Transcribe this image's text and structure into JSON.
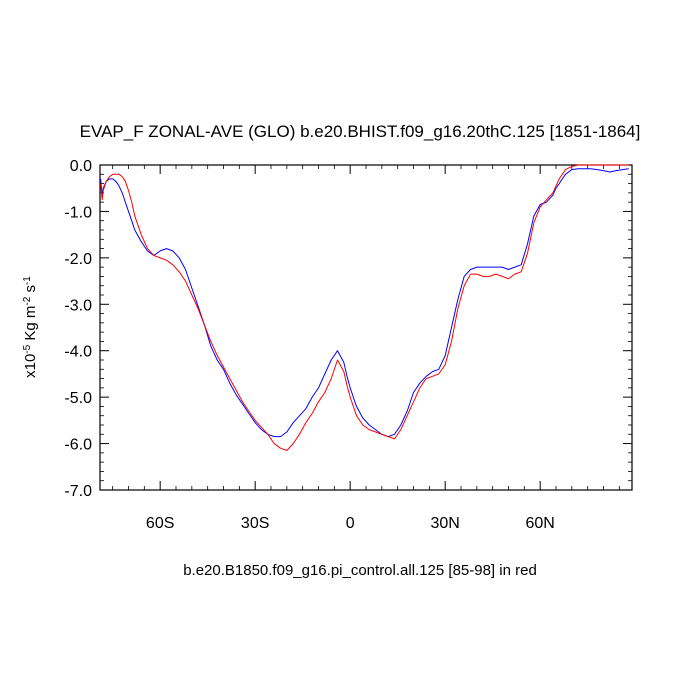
{
  "chart_data": {
    "type": "line",
    "title": "EVAP_F ZONAL-AVE (GLO) b.e20.BHIST.f09_g16.20thC.125 [1851-1864]",
    "ylabel": {
      "prefix": "x10",
      "exp1": "-5",
      "mid": " Kg m",
      "exp2": "-2",
      "mid2": " s",
      "exp3": "-1"
    },
    "caption": "b.e20.B1850.f09_g16.pi_control.all.125 [85-98] in red",
    "xlim": [
      -79,
      89
    ],
    "ylim": [
      -7.0,
      0.0
    ],
    "x_ticks": [
      {
        "value": -60,
        "label": "60S"
      },
      {
        "value": -30,
        "label": "30S"
      },
      {
        "value": 0,
        "label": "0"
      },
      {
        "value": 30,
        "label": "30N"
      },
      {
        "value": 60,
        "label": "60N"
      }
    ],
    "y_ticks": [
      {
        "value": 0,
        "label": "0.0"
      },
      {
        "value": -1,
        "label": "-1.0"
      },
      {
        "value": -2,
        "label": "-2.0"
      },
      {
        "value": -3,
        "label": "-3.0"
      },
      {
        "value": -4,
        "label": "-4.0"
      },
      {
        "value": -5,
        "label": "-5.0"
      },
      {
        "value": -6,
        "label": "-6.0"
      },
      {
        "value": -7,
        "label": "-7.0"
      }
    ],
    "grid": false,
    "legend": "none",
    "series": [
      {
        "color": "#0000ff",
        "x": [
          -78.8,
          -78.3,
          -78,
          -77,
          -76,
          -75,
          -74,
          -73,
          -72,
          -71,
          -70,
          -69,
          -68,
          -66,
          -64,
          -62,
          -60,
          -58,
          -56,
          -54,
          -52,
          -50,
          -48,
          -46,
          -44,
          -42,
          -40,
          -38,
          -36,
          -34,
          -32,
          -30,
          -28,
          -26,
          -24,
          -22,
          -20,
          -18,
          -16,
          -14,
          -12,
          -10,
          -8,
          -6,
          -4,
          -2,
          -1,
          0,
          1,
          2,
          4,
          6,
          8,
          10,
          12,
          14,
          16,
          18,
          20,
          22,
          24,
          26,
          28,
          30,
          32,
          34,
          36,
          38,
          40,
          42,
          44,
          46,
          48,
          50,
          52,
          54,
          56,
          58,
          60,
          62,
          64,
          65,
          66,
          67,
          68,
          70,
          72,
          74,
          76,
          78,
          80,
          82,
          84,
          86,
          88
        ],
        "y": [
          -0.3,
          -0.65,
          -0.5,
          -0.35,
          -0.3,
          -0.3,
          -0.35,
          -0.45,
          -0.6,
          -0.8,
          -1.0,
          -1.2,
          -1.4,
          -1.65,
          -1.85,
          -1.95,
          -1.85,
          -1.8,
          -1.85,
          -2.0,
          -2.25,
          -2.65,
          -3.05,
          -3.45,
          -3.9,
          -4.2,
          -4.4,
          -4.7,
          -4.95,
          -5.15,
          -5.35,
          -5.55,
          -5.7,
          -5.8,
          -5.85,
          -5.85,
          -5.75,
          -5.55,
          -5.4,
          -5.25,
          -5.0,
          -4.8,
          -4.5,
          -4.2,
          -4.0,
          -4.25,
          -4.55,
          -4.8,
          -5.0,
          -5.2,
          -5.45,
          -5.6,
          -5.7,
          -5.8,
          -5.85,
          -5.8,
          -5.6,
          -5.3,
          -4.9,
          -4.7,
          -4.55,
          -4.45,
          -4.4,
          -4.1,
          -3.5,
          -2.9,
          -2.4,
          -2.25,
          -2.2,
          -2.2,
          -2.2,
          -2.2,
          -2.2,
          -2.25,
          -2.2,
          -2.15,
          -1.7,
          -1.1,
          -0.85,
          -0.8,
          -0.65,
          -0.5,
          -0.4,
          -0.3,
          -0.2,
          -0.1,
          -0.08,
          -0.08,
          -0.08,
          -0.1,
          -0.12,
          -0.15,
          -0.12,
          -0.1,
          -0.08
        ]
      },
      {
        "color": "#ff0000",
        "x": [
          -78.8,
          -78.3,
          -78,
          -77,
          -76,
          -75,
          -74,
          -73,
          -72,
          -71,
          -70,
          -69,
          -68,
          -66,
          -64,
          -62,
          -60,
          -58,
          -56,
          -54,
          -52,
          -50,
          -48,
          -46,
          -44,
          -42,
          -40,
          -38,
          -36,
          -34,
          -32,
          -30,
          -28,
          -26,
          -24,
          -22,
          -20,
          -18,
          -16,
          -14,
          -12,
          -10,
          -8,
          -6,
          -4,
          -2,
          -1,
          0,
          1,
          2,
          4,
          6,
          8,
          10,
          12,
          14,
          16,
          18,
          20,
          22,
          24,
          26,
          28,
          30,
          32,
          34,
          36,
          38,
          40,
          42,
          44,
          46,
          48,
          50,
          52,
          54,
          56,
          58,
          60,
          62,
          64,
          65,
          66,
          67,
          68,
          70,
          72,
          74,
          76,
          78,
          80,
          82,
          84,
          86,
          88
        ],
        "y": [
          -0.4,
          -0.75,
          -0.55,
          -0.35,
          -0.25,
          -0.2,
          -0.2,
          -0.2,
          -0.25,
          -0.35,
          -0.55,
          -0.8,
          -1.1,
          -1.5,
          -1.8,
          -1.95,
          -2.0,
          -2.05,
          -2.15,
          -2.3,
          -2.5,
          -2.8,
          -3.1,
          -3.45,
          -3.8,
          -4.1,
          -4.35,
          -4.6,
          -4.85,
          -5.1,
          -5.3,
          -5.5,
          -5.65,
          -5.8,
          -6.0,
          -6.1,
          -6.15,
          -6.0,
          -5.8,
          -5.55,
          -5.35,
          -5.1,
          -4.9,
          -4.6,
          -4.2,
          -4.45,
          -4.75,
          -5.0,
          -5.2,
          -5.4,
          -5.6,
          -5.7,
          -5.75,
          -5.8,
          -5.85,
          -5.9,
          -5.7,
          -5.4,
          -5.1,
          -4.8,
          -4.6,
          -4.55,
          -4.5,
          -4.3,
          -3.8,
          -3.1,
          -2.6,
          -2.35,
          -2.35,
          -2.4,
          -2.4,
          -2.35,
          -2.4,
          -2.45,
          -2.35,
          -2.3,
          -1.9,
          -1.25,
          -0.9,
          -0.75,
          -0.6,
          -0.45,
          -0.3,
          -0.2,
          -0.1,
          -0.03,
          0.0,
          0.0,
          0.0,
          0.0,
          0.0,
          0.0,
          0.0,
          0.0,
          0.0
        ]
      }
    ]
  }
}
